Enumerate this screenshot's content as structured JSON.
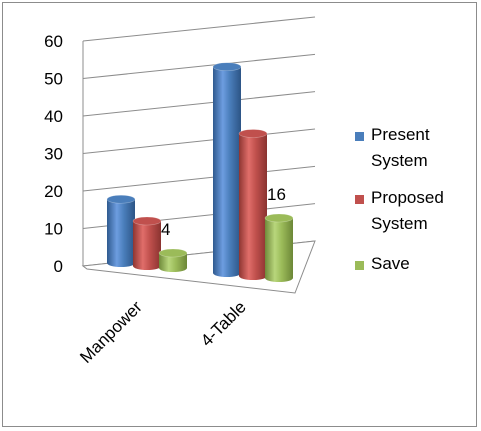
{
  "chart_data": {
    "type": "bar",
    "subtype": "3d-clustered-cylinder",
    "categories": [
      "Manpower",
      "4-Table"
    ],
    "series": [
      {
        "name": "Present System",
        "values": [
          17,
          55
        ],
        "color": "#4a7ebb"
      },
      {
        "name": "Proposed System",
        "values": [
          12,
          38
        ],
        "color": "#c0504d"
      },
      {
        "name": "Save",
        "values": [
          4,
          16
        ],
        "color": "#9bbb59"
      }
    ],
    "legend": {
      "position": "right",
      "entries": [
        {
          "lines": [
            "Present",
            "System"
          ]
        },
        {
          "lines": [
            "Proposed",
            "System"
          ]
        },
        {
          "lines": [
            "Save"
          ]
        }
      ]
    },
    "data_labels": [
      {
        "series": "Save",
        "category": "Manpower",
        "text": "4"
      },
      {
        "series": "Save",
        "category": "4-Table",
        "text": "16"
      }
    ],
    "ylim": [
      0,
      60
    ],
    "yticks": [
      "0",
      "10",
      "20",
      "30",
      "40",
      "50",
      "60"
    ],
    "grid": true,
    "title": "",
    "xlabel": "",
    "ylabel": ""
  }
}
